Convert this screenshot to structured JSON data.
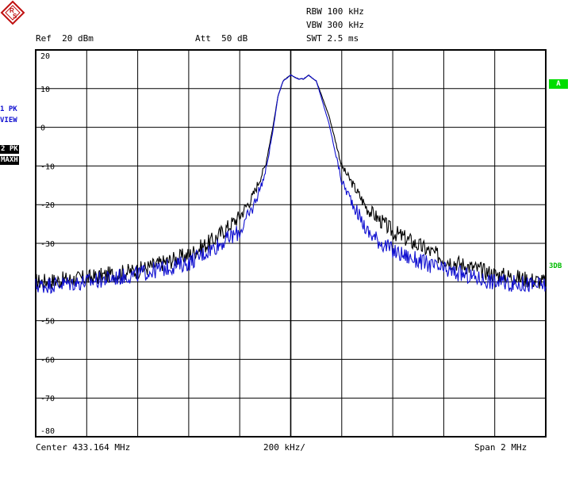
{
  "header": {
    "rbw": "RBW 100 kHz",
    "vbw": "VBW 300 kHz",
    "swt": "SWT 2.5 ms",
    "ref": "Ref  20 dBm",
    "att": "Att  50 dB"
  },
  "logo": {
    "icon": "rohde-schwarz-logo-icon",
    "text": "R S"
  },
  "traces_panel": {
    "trace1": {
      "line1": "1 PK",
      "line2": "VIEW",
      "color": "#1010d0"
    },
    "trace2": {
      "line1": "2 PK",
      "line2": "MAXH",
      "color": "#000000"
    }
  },
  "markers": {
    "a": "A",
    "threedb": "3DB",
    "a_color": "#00dd00"
  },
  "footer": {
    "center": "Center 433.164 MHz",
    "div": "200 kHz/",
    "span": "Span 2 MHz"
  },
  "chart_data": {
    "type": "line",
    "xlabel": "",
    "ylabel": "",
    "xlim": [
      432.164,
      434.164
    ],
    "ylim": [
      -80,
      20
    ],
    "y_ticks": [
      20,
      10,
      0,
      -10,
      -20,
      -30,
      -50,
      -60,
      -70,
      -80
    ],
    "y_tick_labels": [
      "20",
      "10",
      "0",
      "-10",
      "-20",
      "-30",
      "-50",
      "-60",
      "-70",
      "-80"
    ],
    "grid": true,
    "series": [
      {
        "color": "#000000",
        "x": [
          432.164,
          432.364,
          432.564,
          432.764,
          432.864,
          432.964,
          433.014,
          433.064,
          433.094,
          433.114,
          433.134,
          433.164,
          433.194,
          433.214,
          433.234,
          433.264,
          433.314,
          433.364,
          433.464,
          433.564,
          433.764,
          433.964,
          434.164
        ],
        "y": [
          -40,
          -39,
          -37,
          -33,
          -29,
          -23,
          -18,
          -10,
          0,
          8,
          12,
          13.5,
          12.5,
          12.5,
          13.5,
          12,
          3,
          -10,
          -21,
          -27,
          -34,
          -38,
          -40
        ]
      },
      {
        "color": "#1010d0",
        "x": [
          432.164,
          432.364,
          432.564,
          432.764,
          432.864,
          432.964,
          433.014,
          433.064,
          433.094,
          433.114,
          433.134,
          433.164,
          433.194,
          433.214,
          433.234,
          433.264,
          433.314,
          433.364,
          433.464,
          433.564,
          433.764,
          433.964,
          434.164
        ],
        "y": [
          -41,
          -40,
          -38,
          -35,
          -31,
          -27,
          -21,
          -12,
          -1,
          8,
          12,
          13.5,
          12.5,
          12.5,
          13.5,
          12,
          1,
          -14,
          -27,
          -32,
          -37,
          -40,
          -41
        ]
      }
    ]
  }
}
